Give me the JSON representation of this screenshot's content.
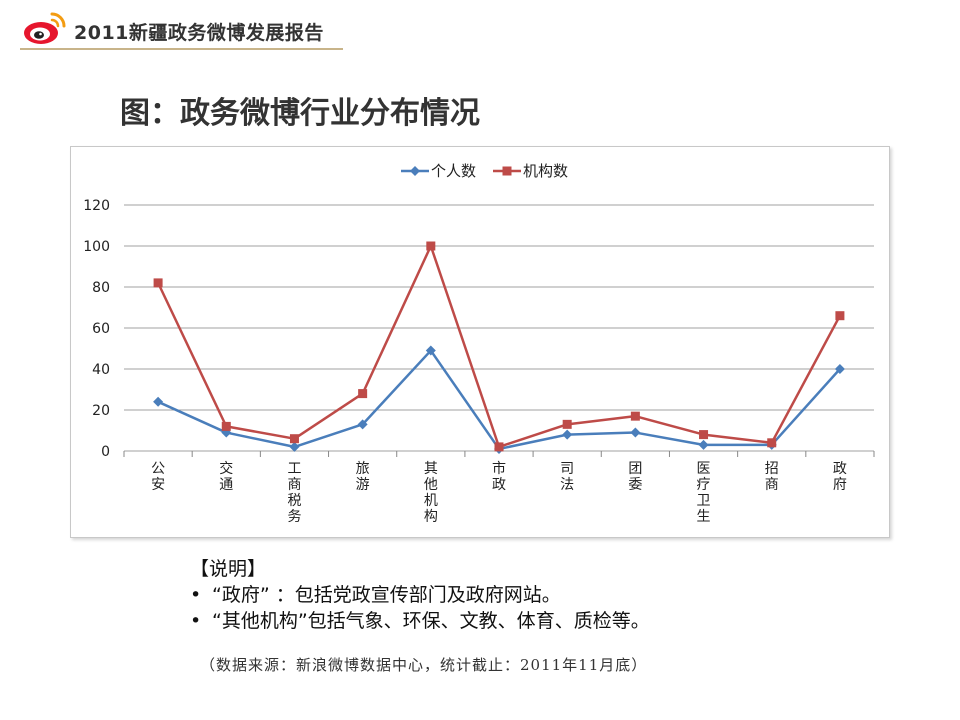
{
  "header": {
    "report_title": "2011新疆政务微博发展报告"
  },
  "page": {
    "title": "图：政务微博行业分布情况"
  },
  "notes": {
    "heading": "【说明】",
    "items": [
      "“政府”  ：包括党政宣传部门及政府网站。",
      "“其他机构”包括气象、环保、文教、体育、质检等。"
    ]
  },
  "source": "（数据来源：新浪微博数据中心，统计截止：2011年11月底）",
  "colors": {
    "series_personal": "#4a7ebb",
    "series_org": "#be4b48",
    "grid": "#999999",
    "header_line": "#c8b48a"
  },
  "chart_data": {
    "type": "line",
    "title": "",
    "xlabel": "",
    "ylabel": "",
    "categories": [
      "公安",
      "交通",
      "工商税务",
      "旅游",
      "其他机构",
      "市政",
      "司法",
      "团委",
      "医疗卫生",
      "招商",
      "政府"
    ],
    "series": [
      {
        "name": "个人数",
        "marker": "diamond",
        "color": "#4a7ebb",
        "values": [
          24,
          9,
          2,
          13,
          49,
          1,
          8,
          9,
          3,
          3,
          40
        ]
      },
      {
        "name": "机构数",
        "marker": "square",
        "color": "#be4b48",
        "values": [
          82,
          12,
          6,
          28,
          100,
          2,
          13,
          17,
          8,
          4,
          66
        ]
      }
    ],
    "ylim": [
      0,
      120
    ],
    "yticks": [
      0,
      20,
      40,
      60,
      80,
      100,
      120
    ],
    "grid": true,
    "legend_position": "top"
  }
}
